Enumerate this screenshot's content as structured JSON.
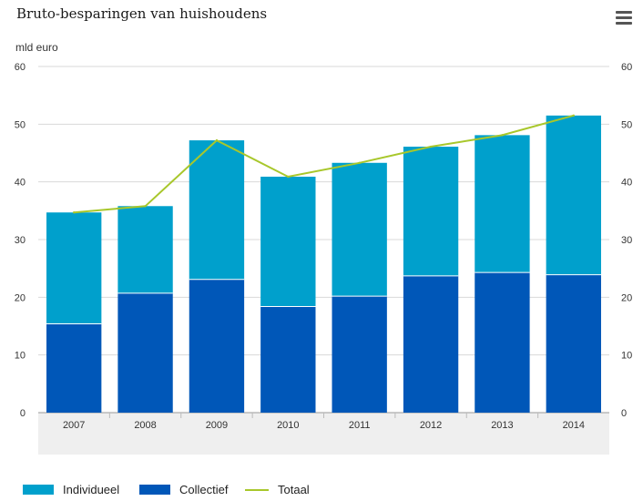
{
  "header": {
    "title": "Bruto-besparingen van huishoudens",
    "unit_label": "mld euro"
  },
  "chart_data": {
    "type": "bar",
    "stacked": true,
    "categories": [
      "2007",
      "2008",
      "2009",
      "2010",
      "2011",
      "2012",
      "2013",
      "2014"
    ],
    "series": [
      {
        "name": "Collectief",
        "kind": "bar",
        "color": "#0057b8",
        "values": [
          15.4,
          20.7,
          23.1,
          18.4,
          20.2,
          23.7,
          24.3,
          23.9
        ]
      },
      {
        "name": "Individueel",
        "kind": "bar",
        "color": "#00a0cc",
        "values": [
          19.3,
          15.1,
          24.1,
          22.5,
          23.1,
          22.4,
          23.8,
          27.6
        ]
      },
      {
        "name": "Totaal",
        "kind": "line",
        "color": "#a8c72b",
        "values": [
          34.7,
          35.8,
          47.2,
          40.9,
          43.3,
          46.1,
          48.1,
          51.5
        ]
      }
    ],
    "ylim": [
      0,
      60
    ],
    "yticks": [
      0,
      10,
      20,
      30,
      40,
      50,
      60
    ],
    "grid": true,
    "legend_position": "bottom-left"
  },
  "legend": [
    {
      "label": "Individueel",
      "color": "#00a0cc",
      "kind": "box"
    },
    {
      "label": "Collectief",
      "color": "#0057b8",
      "kind": "box"
    },
    {
      "label": "Totaal",
      "color": "#a8c72b",
      "kind": "line"
    }
  ],
  "colors": {
    "grid": "#d8d8d8",
    "axis_band": "#efefef",
    "axis_text": "#333333"
  }
}
